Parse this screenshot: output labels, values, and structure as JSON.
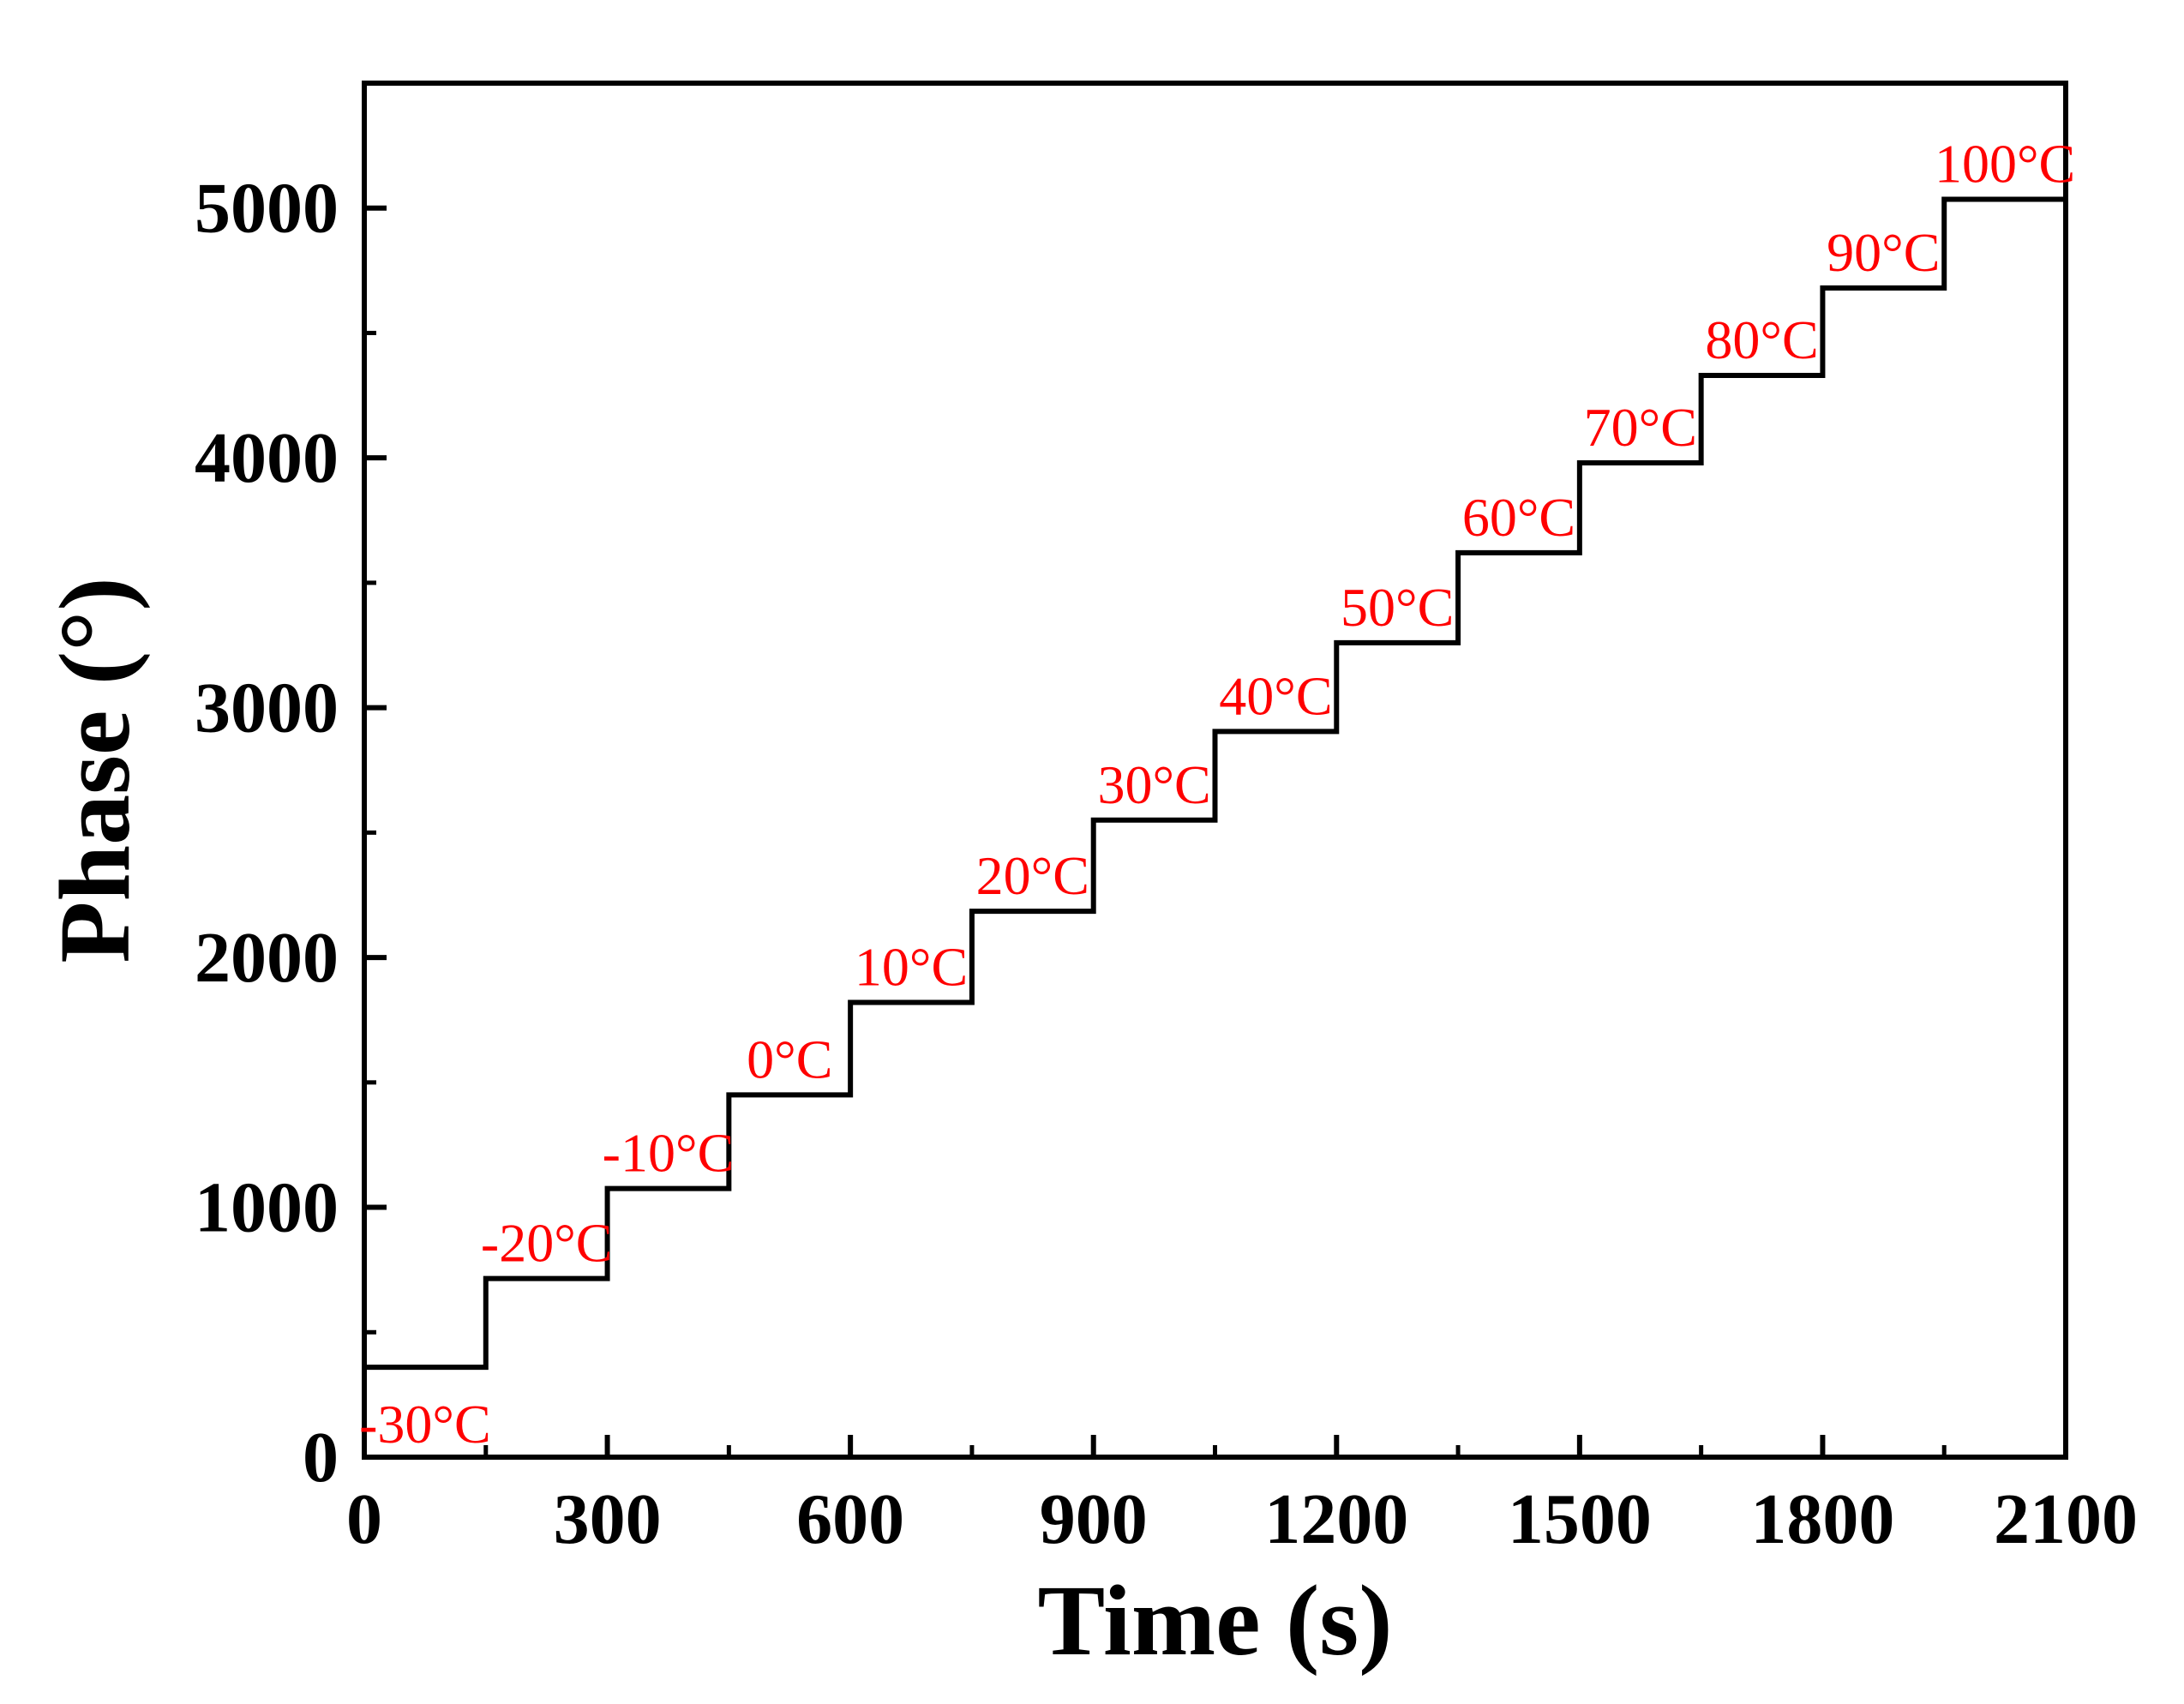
{
  "chart_data": {
    "type": "line",
    "step": true,
    "xlabel": "Time (s)",
    "ylabel": "Phase (°)",
    "xlim": [
      0,
      2100
    ],
    "ylim": [
      0,
      5500
    ],
    "x_ticks": [
      0,
      300,
      600,
      900,
      1200,
      1500,
      1800,
      2100
    ],
    "y_ticks": [
      0,
      1000,
      2000,
      3000,
      4000,
      5000
    ],
    "x_minor_ticks": [
      150,
      450,
      750,
      1050,
      1350,
      1650,
      1950
    ],
    "y_minor_ticks": [
      500,
      1500,
      2500,
      3500,
      4500
    ],
    "grid": false,
    "line_color": "#000000",
    "label_color": "#ff0000",
    "series": [
      {
        "steps": [
          {
            "x0": 0,
            "x1": 150,
            "y": 360,
            "label": "-30°C"
          },
          {
            "x0": 150,
            "x1": 300,
            "y": 715,
            "label": "-20°C"
          },
          {
            "x0": 300,
            "x1": 450,
            "y": 1075,
            "label": "-10°C"
          },
          {
            "x0": 450,
            "x1": 600,
            "y": 1450,
            "label": "0°C"
          },
          {
            "x0": 600,
            "x1": 750,
            "y": 1820,
            "label": "10°C"
          },
          {
            "x0": 750,
            "x1": 900,
            "y": 2185,
            "label": "20°C"
          },
          {
            "x0": 900,
            "x1": 1050,
            "y": 2550,
            "label": "30°C"
          },
          {
            "x0": 1050,
            "x1": 1200,
            "y": 2905,
            "label": "40°C"
          },
          {
            "x0": 1200,
            "x1": 1350,
            "y": 3260,
            "label": "50°C"
          },
          {
            "x0": 1350,
            "x1": 1500,
            "y": 3620,
            "label": "60°C"
          },
          {
            "x0": 1500,
            "x1": 1650,
            "y": 3980,
            "label": "70°C"
          },
          {
            "x0": 1650,
            "x1": 1800,
            "y": 4330,
            "label": "80°C"
          },
          {
            "x0": 1800,
            "x1": 1950,
            "y": 4680,
            "label": "90°C"
          },
          {
            "x0": 1950,
            "x1": 2100,
            "y": 5035,
            "label": "100°C"
          }
        ]
      }
    ]
  }
}
